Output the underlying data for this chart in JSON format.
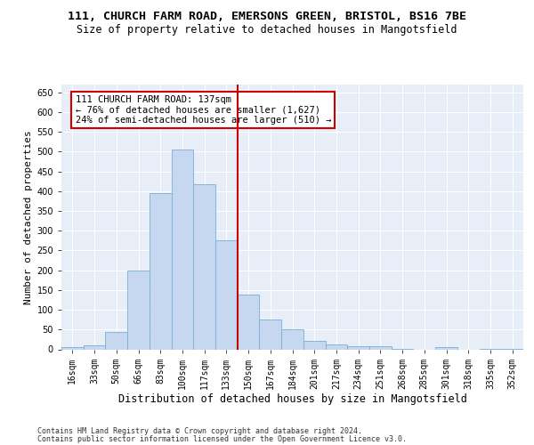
{
  "title_line1": "111, CHURCH FARM ROAD, EMERSONS GREEN, BRISTOL, BS16 7BE",
  "title_line2": "Size of property relative to detached houses in Mangotsfield",
  "xlabel": "Distribution of detached houses by size in Mangotsfield",
  "ylabel": "Number of detached properties",
  "footer_line1": "Contains HM Land Registry data © Crown copyright and database right 2024.",
  "footer_line2": "Contains public sector information licensed under the Open Government Licence v3.0.",
  "bar_labels": [
    "16sqm",
    "33sqm",
    "50sqm",
    "66sqm",
    "83sqm",
    "100sqm",
    "117sqm",
    "133sqm",
    "150sqm",
    "167sqm",
    "184sqm",
    "201sqm",
    "217sqm",
    "234sqm",
    "251sqm",
    "268sqm",
    "285sqm",
    "301sqm",
    "318sqm",
    "335sqm",
    "352sqm"
  ],
  "bar_values": [
    5,
    10,
    45,
    200,
    395,
    505,
    418,
    275,
    138,
    75,
    50,
    22,
    12,
    8,
    7,
    2,
    0,
    5,
    0,
    2,
    2
  ],
  "bar_color": "#c5d8f0",
  "bar_edge_color": "#7aafd4",
  "vline_color": "#cc0000",
  "annotation_text": "111 CHURCH FARM ROAD: 137sqm\n← 76% of detached houses are smaller (1,627)\n24% of semi-detached houses are larger (510) →",
  "annotation_box_edgecolor": "#cc0000",
  "annotation_fill_color": "#ffffff",
  "ylim": [
    0,
    670
  ],
  "yticks": [
    0,
    50,
    100,
    150,
    200,
    250,
    300,
    350,
    400,
    450,
    500,
    550,
    600,
    650
  ],
  "bg_color": "#e8eef8",
  "grid_color": "#ffffff",
  "title1_fontsize": 9.5,
  "title2_fontsize": 8.5,
  "xlabel_fontsize": 8.5,
  "ylabel_fontsize": 8,
  "footer_fontsize": 6,
  "tick_fontsize": 7,
  "annot_fontsize": 7.5
}
